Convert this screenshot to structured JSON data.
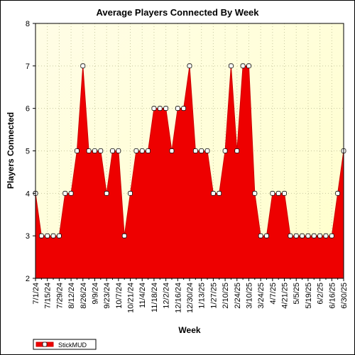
{
  "chart_data": {
    "type": "area",
    "title": "Average Players Connected By Week",
    "xlabel": "Week",
    "ylabel": "Players Connected",
    "ylim": [
      2,
      8
    ],
    "yticks": [
      2,
      3,
      4,
      5,
      6,
      7,
      8
    ],
    "grid": true,
    "legend_position": "bottom-left",
    "colors": {
      "fill": "#ee0000",
      "line": "#cc0000",
      "marker_fill": "#ffffff",
      "marker_edge": "#000000",
      "plot_bg_top": "#fffde6",
      "plot_bg_bottom": "#ffffcc",
      "grid": "#c8c8a0"
    },
    "x": [
      "7/1/24",
      "7/8/24",
      "7/15/24",
      "7/22/24",
      "7/29/24",
      "8/5/24",
      "8/12/24",
      "8/19/24",
      "8/26/24",
      "9/2/24",
      "9/9/24",
      "9/16/24",
      "9/23/24",
      "9/30/24",
      "10/7/24",
      "10/14/24",
      "10/21/24",
      "10/28/24",
      "11/4/24",
      "11/11/24",
      "11/18/24",
      "11/25/24",
      "12/2/24",
      "12/9/24",
      "12/16/24",
      "12/23/24",
      "12/30/24",
      "1/6/25",
      "1/13/25",
      "1/20/25",
      "1/27/25",
      "2/3/25",
      "2/10/25",
      "2/17/25",
      "2/24/25",
      "3/3/25",
      "3/10/25",
      "3/17/25",
      "3/24/25",
      "3/31/25",
      "4/7/25",
      "4/14/25",
      "4/21/25",
      "4/28/25",
      "5/5/25",
      "5/12/25",
      "5/19/25",
      "5/26/25",
      "6/2/25",
      "6/9/25",
      "6/16/25",
      "6/23/25",
      "6/30/25"
    ],
    "x_tick_labels": [
      "7/1/24",
      "7/15/24",
      "7/29/24",
      "8/12/24",
      "8/26/24",
      "9/9/24",
      "9/23/24",
      "10/7/24",
      "10/21/24",
      "11/4/24",
      "11/18/24",
      "12/2/24",
      "12/16/24",
      "12/30/24",
      "1/13/25",
      "1/27/25",
      "2/10/25",
      "2/24/25",
      "3/10/25",
      "3/24/25",
      "4/7/25",
      "4/21/25",
      "5/5/25",
      "5/19/25",
      "6/2/25",
      "6/16/25",
      "6/30/25"
    ],
    "series": [
      {
        "name": "StickMUD",
        "values": [
          4,
          3,
          3,
          3,
          3,
          4,
          4,
          5,
          7,
          5,
          5,
          5,
          4,
          5,
          5,
          3,
          4,
          5,
          5,
          5,
          6,
          6,
          6,
          5,
          6,
          6,
          7,
          5,
          5,
          5,
          4,
          4,
          5,
          7,
          5,
          7,
          7,
          4,
          3,
          3,
          4,
          4,
          4,
          3,
          3,
          3,
          3,
          3,
          3,
          3,
          3,
          4,
          5
        ]
      }
    ]
  }
}
